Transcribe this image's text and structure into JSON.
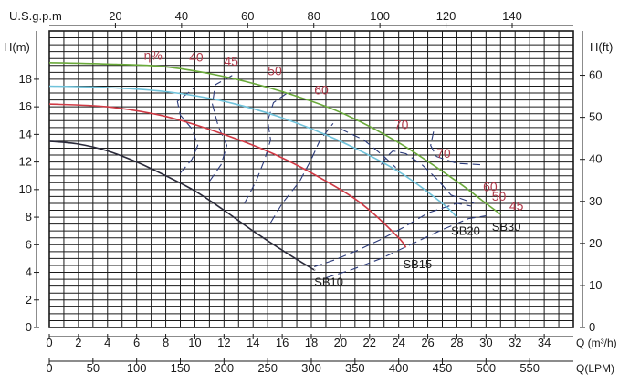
{
  "chart_data": {
    "type": "line",
    "title": "",
    "axes": {
      "q_m3h": {
        "label": "Q (m³/h)",
        "min": 0,
        "max": 36,
        "ticks": [
          0,
          2,
          4,
          6,
          8,
          10,
          12,
          14,
          16,
          18,
          20,
          22,
          24,
          26,
          28,
          30,
          32,
          34
        ]
      },
      "q_lpm": {
        "label": "Q(LPM)",
        "ticks": [
          0,
          50,
          100,
          150,
          200,
          250,
          300,
          350,
          400,
          450,
          500,
          550
        ]
      },
      "q_usgpm": {
        "label": "U.S.g.p.m",
        "ticks": [
          20,
          40,
          60,
          80,
          100,
          120,
          140
        ]
      },
      "h_m": {
        "label": "H(m)",
        "min": 0,
        "max": 21.5,
        "ticks": [
          0,
          2,
          4,
          6,
          8,
          10,
          12,
          14,
          16,
          18
        ]
      },
      "h_ft": {
        "label": "H(ft)",
        "ticks": [
          0,
          10,
          20,
          30,
          40,
          50,
          60
        ]
      },
      "grid": true
    },
    "series": [
      {
        "name": "SB10",
        "color": "#2a2a3a",
        "points": [
          [
            0,
            13.5
          ],
          [
            2,
            13.3
          ],
          [
            4,
            12.8
          ],
          [
            6,
            12.0
          ],
          [
            8,
            11.0
          ],
          [
            10,
            9.9
          ],
          [
            12,
            8.5
          ],
          [
            14,
            7.0
          ],
          [
            16,
            5.6
          ],
          [
            18,
            4.3
          ],
          [
            18.2,
            4.2
          ]
        ]
      },
      {
        "name": "SB15",
        "color": "#d03a45",
        "points": [
          [
            0,
            16.2
          ],
          [
            4,
            16.0
          ],
          [
            8,
            15.3
          ],
          [
            12,
            14.0
          ],
          [
            16,
            12.3
          ],
          [
            20,
            10.0
          ],
          [
            22,
            8.5
          ],
          [
            24,
            6.5
          ],
          [
            24.5,
            5.8
          ]
        ]
      },
      {
        "name": "SB20",
        "color": "#70c3db",
        "points": [
          [
            0,
            17.5
          ],
          [
            4,
            17.4
          ],
          [
            8,
            17.1
          ],
          [
            12,
            16.4
          ],
          [
            16,
            15.2
          ],
          [
            20,
            13.5
          ],
          [
            24,
            11.3
          ],
          [
            27,
            9.0
          ],
          [
            28,
            8.0
          ]
        ]
      },
      {
        "name": "SB30",
        "color": "#6aaa3a",
        "points": [
          [
            0,
            19.2
          ],
          [
            4,
            19.1
          ],
          [
            8,
            18.9
          ],
          [
            12,
            18.2
          ],
          [
            16,
            17.1
          ],
          [
            20,
            15.6
          ],
          [
            24,
            13.4
          ],
          [
            28,
            10.6
          ],
          [
            30,
            9.0
          ],
          [
            31,
            8.2
          ]
        ]
      }
    ],
    "efficiency": {
      "label": "η%",
      "values": [
        "40",
        "45",
        "50",
        "60",
        "70",
        "70",
        "60",
        "50",
        "45"
      ],
      "color": "#b03a4a"
    }
  }
}
